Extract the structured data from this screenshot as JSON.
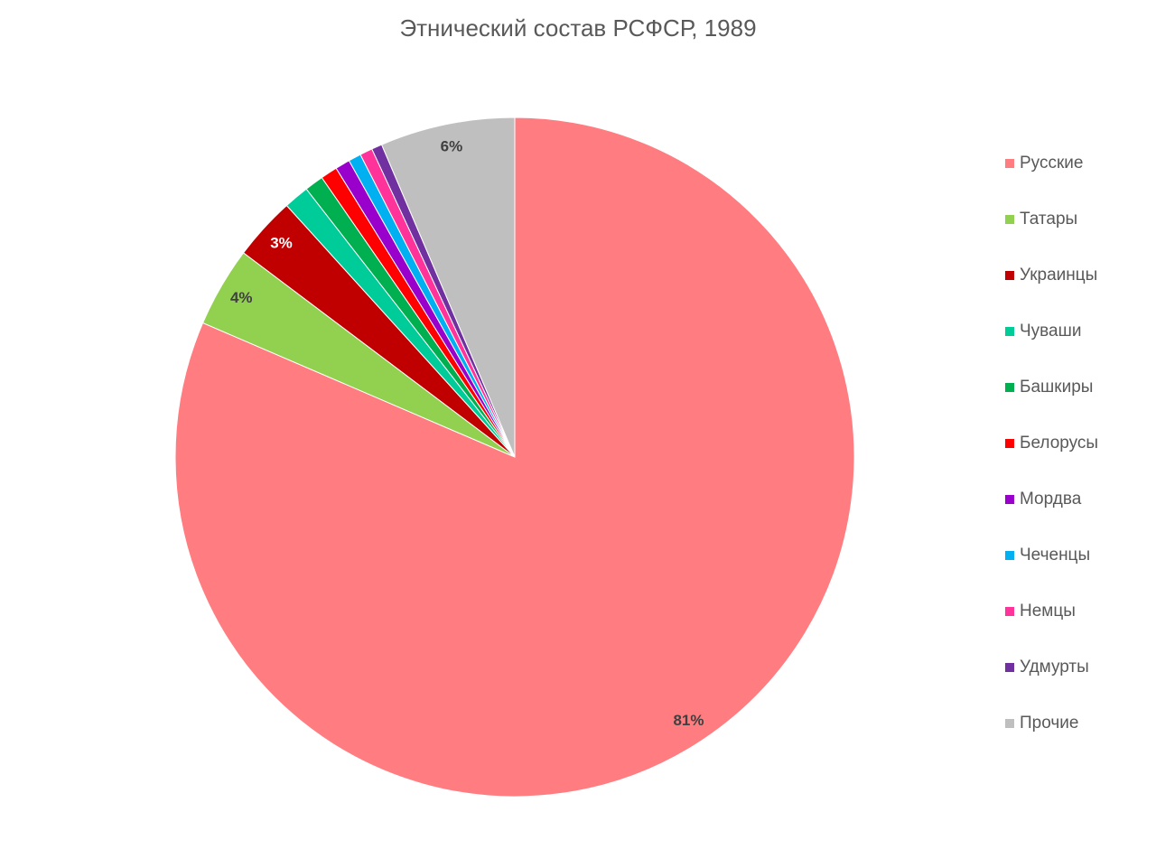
{
  "chart_data": {
    "type": "pie",
    "title": "Этнический состав РСФСР, 1989",
    "categories": [
      "Русские",
      "Татары",
      "Украинцы",
      "Чуваши",
      "Башкиры",
      "Белорусы",
      "Мордва",
      "Чеченцы",
      "Немцы",
      "Удмурты",
      "Прочие"
    ],
    "values": [
      81.3,
      3.8,
      3.0,
      1.2,
      0.9,
      0.8,
      0.7,
      0.6,
      0.6,
      0.5,
      6.4
    ],
    "value_labels": [
      "81%",
      "4%",
      "3%",
      null,
      null,
      null,
      null,
      null,
      null,
      null,
      "6%"
    ],
    "colors": [
      "#ff7c80",
      "#92d050",
      "#c00000",
      "#00cc99",
      "#00b050",
      "#ff0000",
      "#9900cc",
      "#00b0f0",
      "#ff3399",
      "#7030a0",
      "#bfbfbf"
    ],
    "legend": "right"
  }
}
